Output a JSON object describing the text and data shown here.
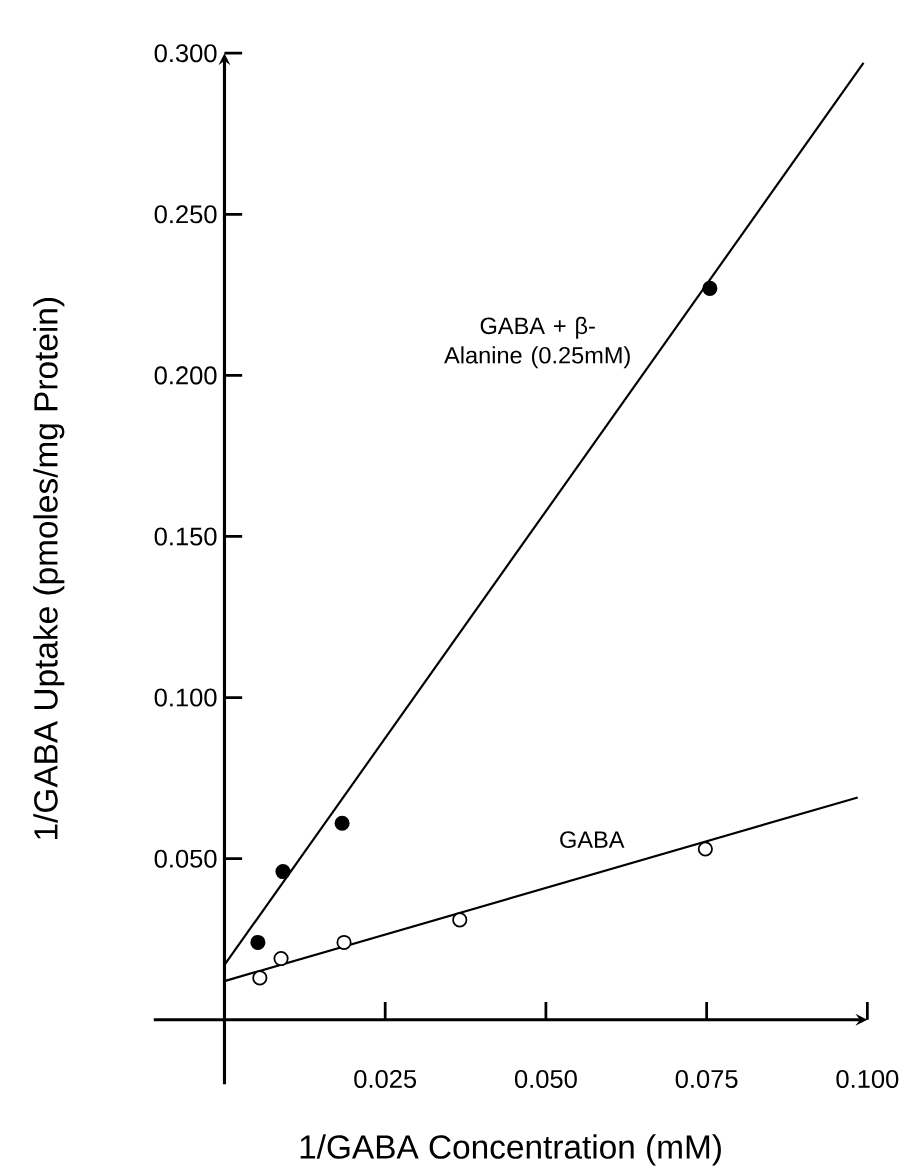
{
  "chart_data": {
    "type": "scatter",
    "xlabel": "1/GABA Concentration (mM)",
    "ylabel": "1/GABA Uptake (pmoles/mg Protein)",
    "xlim": [
      -0.011,
      0.1
    ],
    "ylim": [
      -0.02,
      0.3
    ],
    "xticks": [
      {
        "value": 0.025,
        "label": "0.025"
      },
      {
        "value": 0.05,
        "label": "0.050"
      },
      {
        "value": 0.075,
        "label": "0.075"
      },
      {
        "value": 0.1,
        "label": "0.100"
      }
    ],
    "yticks": [
      {
        "value": 0.05,
        "label": "0.050"
      },
      {
        "value": 0.1,
        "label": "0.100"
      },
      {
        "value": 0.15,
        "label": "0.150"
      },
      {
        "value": 0.2,
        "label": "0.200"
      },
      {
        "value": 0.25,
        "label": "0.250"
      },
      {
        "value": 0.3,
        "label": "0.300"
      }
    ],
    "grid": false,
    "legend": false,
    "series": [
      {
        "marker": "circle",
        "color": "#000000",
        "x": [
          0.0052,
          0.0091,
          0.0183,
          0.0755
        ],
        "values": [
          0.024,
          0.046,
          0.061,
          0.227
        ]
      },
      {
        "name": "GABA + β-Alanine (0.25mM)",
        "type": "line",
        "marker": "none",
        "color": "#000000",
        "x": [
          0,
          0.0994
        ],
        "values": [
          0.017,
          0.297
        ]
      },
      {
        "marker": "circle",
        "color": "#ffffff",
        "x": [
          0.0055,
          0.0088,
          0.0186,
          0.0366,
          0.0748
        ],
        "values": [
          0.013,
          0.019,
          0.024,
          0.031,
          0.053
        ]
      },
      {
        "name": "GABA",
        "type": "line",
        "marker": "none",
        "color": "#000000",
        "x": [
          0,
          0.0985
        ],
        "values": [
          0.012,
          0.069
        ]
      }
    ]
  }
}
